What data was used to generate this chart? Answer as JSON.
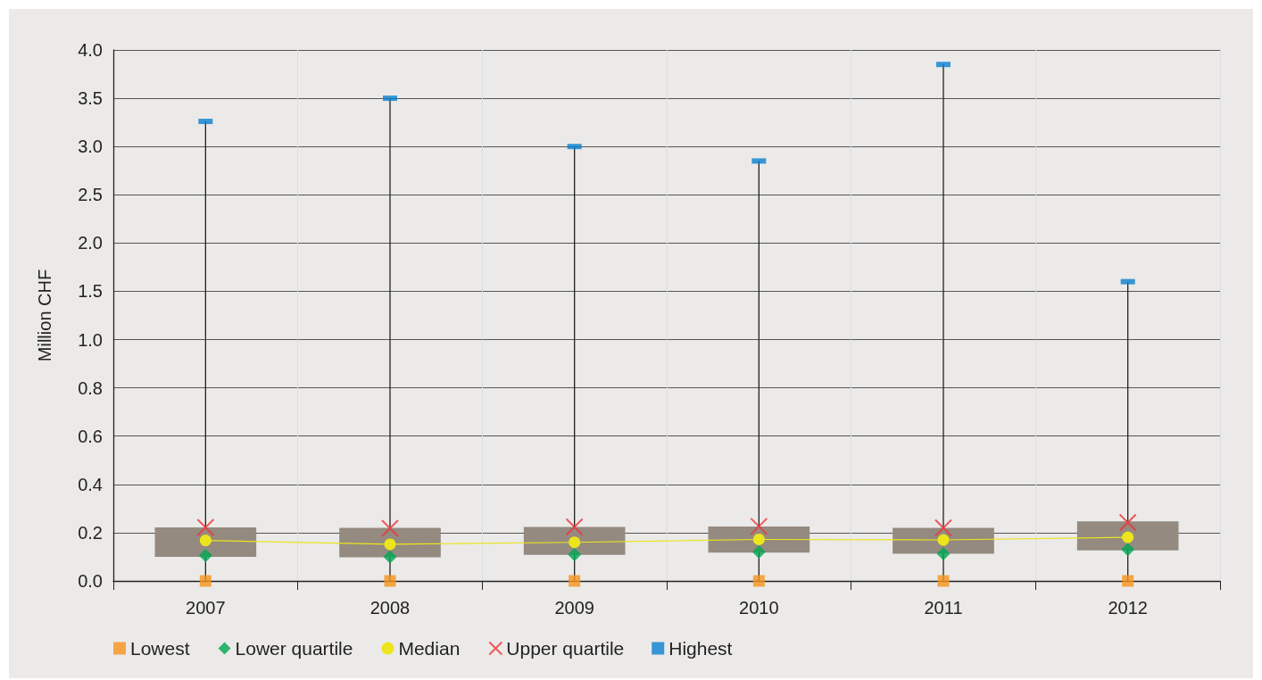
{
  "chart_data": [
    {
      "type": "lollipop",
      "categories": [
        "2007",
        "2008",
        "2009",
        "2010",
        "2011",
        "2012"
      ],
      "series": [
        {
          "name": "Highest",
          "marker": "square",
          "color": "#0a7fcf",
          "values": [
            3.26,
            3.5,
            3.0,
            2.85,
            3.85,
            1.6
          ]
        }
      ],
      "ylim": [
        1.0,
        4.0
      ],
      "yticks": [
        {
          "value": 1.5,
          "label": "1.5"
        },
        {
          "value": 2.0,
          "label": "2.0"
        },
        {
          "value": 2.5,
          "label": "2.5"
        },
        {
          "value": 3.0,
          "label": "3.0"
        },
        {
          "value": 3.5,
          "label": "3.5"
        },
        {
          "value": 4.0,
          "label": "4.0"
        }
      ],
      "grid": true,
      "tick_labels": "y",
      "legend": "bottom left"
    },
    {
      "type": "bar",
      "ylabel": "Million CHF",
      "categories": [
        "2007",
        "2008",
        "2009",
        "2010",
        "2011",
        "2012"
      ],
      "series": [
        {
          "type": "bar",
          "color": "#958a80",
          "base": [
            0.1,
            0.098,
            0.108,
            0.117,
            0.113,
            0.127
          ],
          "values": [
            0.122,
            0.122,
            0.116,
            0.109,
            0.107,
            0.12
          ]
        },
        {
          "name": "Lowest",
          "type": "scatter",
          "marker": "square",
          "color": "#f7941d",
          "values": [
            0,
            0,
            0,
            0,
            0,
            0
          ]
        },
        {
          "name": "Lower quartile",
          "type": "scatter",
          "marker": "diamond",
          "color": "#00a651",
          "values": [
            0.105,
            0.1,
            0.109,
            0.12,
            0.113,
            0.13
          ]
        },
        {
          "name": "Median",
          "type": "line",
          "marker": "circle",
          "color": "#ece51c",
          "values": [
            0.168,
            0.152,
            0.16,
            0.172,
            0.17,
            0.181
          ]
        },
        {
          "name": "Upper quartile",
          "type": "scatter",
          "marker": "cross",
          "color": "#ee3338",
          "values": [
            0.222,
            0.218,
            0.224,
            0.226,
            0.22,
            0.242
          ]
        }
      ],
      "ylim": [
        0,
        1.0
      ],
      "yticks": [
        {
          "value": 0,
          "label": "0.0"
        },
        {
          "value": 0.2,
          "label": "0.2"
        },
        {
          "value": 0.4,
          "label": "0.4"
        },
        {
          "value": 0.6,
          "label": "0.6"
        },
        {
          "value": 0.8,
          "label": "0.8"
        },
        {
          "value": 1.0,
          "label": "1.0"
        }
      ],
      "grid": true,
      "legend": "bottom left"
    }
  ]
}
